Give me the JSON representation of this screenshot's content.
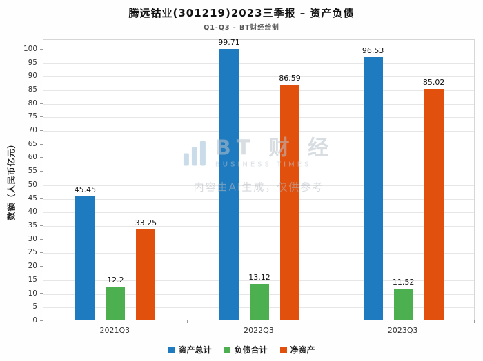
{
  "title": "腾远钴业(301219)2023三季报 – 资产负债",
  "subtitle": "Q1-Q3 - BT财经绘制",
  "watermark": {
    "brand": "BT 财 经",
    "brand_sub": "BUSINESS TIMES",
    "disclaimer": "内容由AI生成，仅供参考"
  },
  "chart_data": {
    "type": "bar",
    "categories": [
      "2021Q3",
      "2022Q3",
      "2023Q3"
    ],
    "series": [
      {
        "name": "资产总计",
        "color": "#1f7bbf",
        "values": [
          45.45,
          99.71,
          96.53
        ]
      },
      {
        "name": "负债合计",
        "color": "#4caf50",
        "values": [
          12.2,
          13.12,
          11.52
        ]
      },
      {
        "name": "净资产",
        "color": "#e2500d",
        "values": [
          33.25,
          86.59,
          85.02
        ]
      }
    ],
    "ylabel": "数额（人民币亿元）",
    "ylim": [
      0,
      100
    ],
    "ytick_step": 5,
    "grid": true,
    "legend_position": "bottom"
  }
}
